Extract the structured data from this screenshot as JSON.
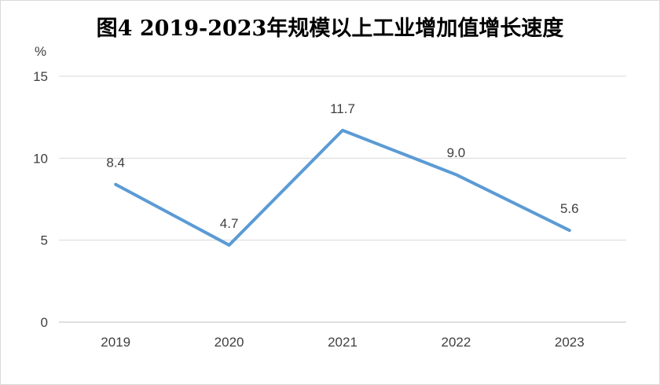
{
  "chart_data": {
    "type": "line",
    "title": "图4  2019-2023年规模以上工业增加值增长速度",
    "unit_label": "%",
    "categories": [
      "2019",
      "2020",
      "2021",
      "2022",
      "2023"
    ],
    "series": [
      {
        "values": [
          8.4,
          4.7,
          11.7,
          9.0,
          5.6
        ],
        "data_labels": [
          "8.4",
          "4.7",
          "11.7",
          "9.0",
          "5.6"
        ],
        "color": "#5b9bd5"
      }
    ],
    "ylim": [
      0,
      15
    ],
    "yticks": [
      0,
      5,
      10,
      15
    ],
    "grid": true,
    "legend": "none"
  }
}
